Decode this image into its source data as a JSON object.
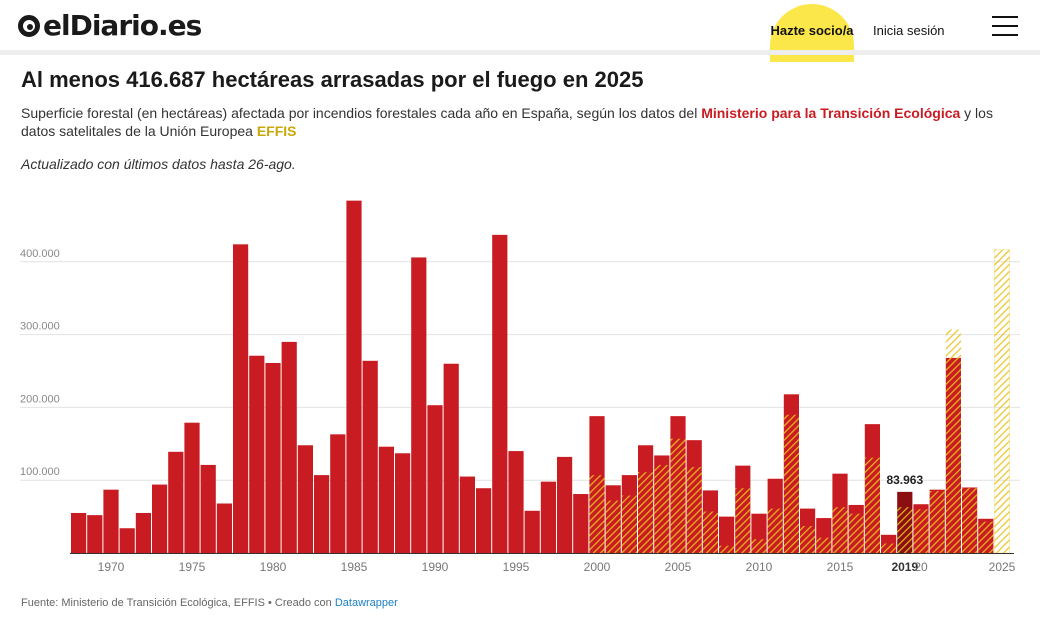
{
  "header": {
    "logo_text": "elDiario.es",
    "socio_label": "Hazte socio/a",
    "login_label": "Inicia sesión"
  },
  "article": {
    "title": "Al menos 416.687 hectáreas arrasadas por el fuego en 2025",
    "subtitle_before": "Superficie forestal (en hectáreas) afectada por incendios forestales cada año en España, según los datos del ",
    "source1": "Ministerio para la Transición Ecológica",
    "subtitle_middle": " y los datos satelitales de la Unión Europea ",
    "source2": "EFFIS",
    "note": "Actualizado con últimos datos hasta 26-ago.",
    "footer_prefix": "Fuente: Ministerio de Transición Ecológica, EFFIS • Creado con ",
    "footer_link": "Datawrapper"
  },
  "chart_data": {
    "type": "bar",
    "title": "",
    "xlabel": "",
    "ylabel": "",
    "ylim": [
      0,
      480000
    ],
    "y_ticks": [
      100000,
      200000,
      300000,
      400000
    ],
    "y_tick_labels": [
      "100.000",
      "200.000",
      "300.000",
      "400.000"
    ],
    "x_ticks": [
      {
        "year": 1970,
        "label": "1970"
      },
      {
        "year": 1975,
        "label": "1975"
      },
      {
        "year": 1980,
        "label": "1980"
      },
      {
        "year": 1985,
        "label": "1985"
      },
      {
        "year": 1990,
        "label": "1990"
      },
      {
        "year": 1995,
        "label": "1995"
      },
      {
        "year": 2000,
        "label": "2000"
      },
      {
        "year": 2005,
        "label": "2005"
      },
      {
        "year": 2010,
        "label": "2010"
      },
      {
        "year": 2015,
        "label": "2015"
      },
      {
        "year": 2019,
        "label": "2019",
        "bold": true
      },
      {
        "year": 2020,
        "label": "20"
      },
      {
        "year": 2025,
        "label": "2025"
      }
    ],
    "grid": true,
    "highlight": {
      "year": 2019,
      "label": "83.963"
    },
    "colors": {
      "ministerio": "#c91c22",
      "effis": "#e8c21c",
      "highlight": "#8b0f10"
    },
    "series": [
      {
        "name": "Ministerio para la Transición Ecológica",
        "years": [
          1968,
          1969,
          1970,
          1971,
          1972,
          1973,
          1974,
          1975,
          1976,
          1977,
          1978,
          1979,
          1980,
          1981,
          1982,
          1983,
          1984,
          1985,
          1986,
          1987,
          1988,
          1989,
          1990,
          1991,
          1992,
          1993,
          1994,
          1995,
          1996,
          1997,
          1998,
          1999,
          2000,
          2001,
          2002,
          2003,
          2004,
          2005,
          2006,
          2007,
          2008,
          2009,
          2010,
          2011,
          2012,
          2013,
          2014,
          2015,
          2016,
          2017,
          2018,
          2019,
          2020,
          2021,
          2022,
          2023,
          2024
        ],
        "values": [
          55000,
          52000,
          87000,
          34000,
          55000,
          94000,
          139000,
          179000,
          121000,
          68000,
          424000,
          271000,
          261000,
          290000,
          148000,
          107000,
          163000,
          484000,
          264000,
          146000,
          137000,
          406000,
          203000,
          260000,
          105000,
          89000,
          437000,
          140000,
          58000,
          98000,
          132000,
          81000,
          188000,
          93000,
          107000,
          148000,
          134000,
          188000,
          155000,
          86000,
          50000,
          120000,
          54000,
          102000,
          218000,
          61000,
          48000,
          109000,
          66000,
          177000,
          25000,
          83963,
          67000,
          87000,
          268000,
          90000,
          47000
        ]
      },
      {
        "name": "EFFIS",
        "years": [
          2000,
          2001,
          2002,
          2003,
          2004,
          2005,
          2006,
          2007,
          2008,
          2009,
          2010,
          2011,
          2012,
          2013,
          2014,
          2015,
          2016,
          2017,
          2018,
          2019,
          2020,
          2021,
          2022,
          2023,
          2024,
          2025
        ],
        "values": [
          107000,
          72000,
          79000,
          111000,
          121000,
          157000,
          118000,
          57000,
          10000,
          89000,
          19000,
          61000,
          190000,
          37000,
          21000,
          63000,
          54000,
          131000,
          13000,
          63000,
          60000,
          85000,
          307000,
          89000,
          43000,
          416687
        ]
      }
    ]
  }
}
